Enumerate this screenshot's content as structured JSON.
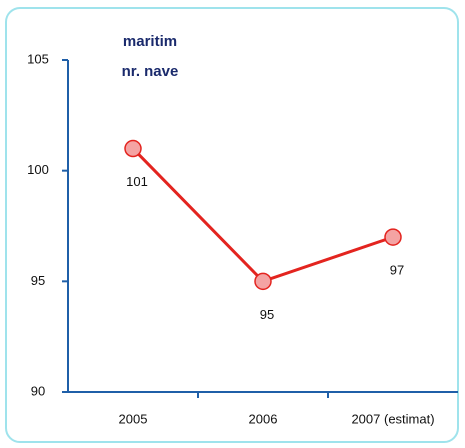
{
  "chart_data": {
    "type": "line",
    "title": "maritim",
    "subtitle": "nr. nave",
    "categories": [
      "2005",
      "2006",
      "2007 (estimat)"
    ],
    "series": [
      {
        "name": "nr. nave",
        "color": "#e3241f",
        "values": [
          101,
          95,
          97
        ]
      }
    ],
    "ylim": [
      90,
      105
    ],
    "yticks": [
      90,
      95,
      100,
      105
    ],
    "grid": false
  }
}
